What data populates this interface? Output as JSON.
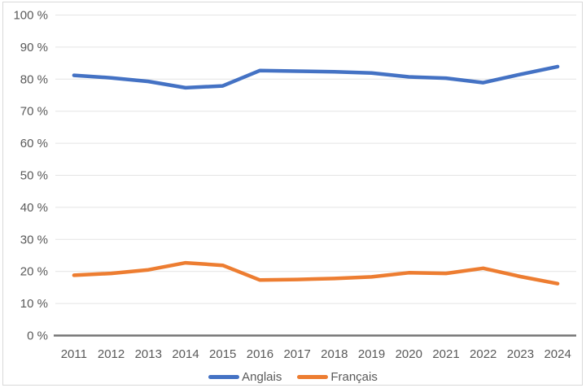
{
  "chart_data": {
    "type": "line",
    "title": "",
    "xlabel": "",
    "ylabel": "",
    "categories": [
      "2011",
      "2012",
      "2013",
      "2014",
      "2015",
      "2016",
      "2017",
      "2018",
      "2019",
      "2020",
      "2021",
      "2022",
      "2023",
      "2024"
    ],
    "series": [
      {
        "name": "Anglais",
        "color": "#4472C4",
        "values": [
          81.2,
          80.4,
          79.3,
          77.3,
          77.9,
          82.7,
          82.5,
          82.3,
          81.9,
          80.7,
          80.3,
          78.9,
          81.5,
          83.9
        ]
      },
      {
        "name": "Français",
        "color": "#ED7D31",
        "values": [
          18.8,
          19.4,
          20.5,
          22.7,
          21.9,
          17.3,
          17.5,
          17.8,
          18.3,
          19.6,
          19.4,
          21.0,
          18.4,
          16.2
        ]
      }
    ],
    "ylim": [
      0,
      100
    ],
    "y_ticks": [
      0,
      10,
      20,
      30,
      40,
      50,
      60,
      70,
      80,
      90,
      100
    ],
    "y_tick_suffix": " %",
    "grid": true,
    "legend_position": "bottom"
  },
  "styles": {
    "grid_color": "#E4E4E4",
    "axis_line_color": "#757575",
    "tick_label_color": "#595959",
    "frame_border_color": "#D9D9D9",
    "background_color": "#FFFFFF"
  }
}
